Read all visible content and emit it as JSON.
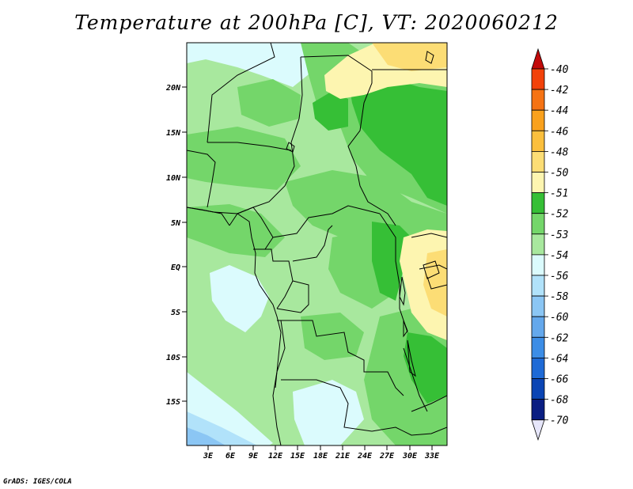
{
  "title": "Temperature at 200hPa [C], VT: 2020060212",
  "credit": "GrADS: IGES/COLA",
  "map": {
    "lat_labels": [
      "20N",
      "15N",
      "10N",
      "5N",
      "EQ",
      "5S",
      "10S",
      "15S"
    ],
    "lon_labels": [
      "3E",
      "6E",
      "9E",
      "12E",
      "15E",
      "18E",
      "21E",
      "24E",
      "27E",
      "30E",
      "33E"
    ]
  },
  "colorbar": {
    "levels": [
      {
        "label": "-40",
        "color": "#e8160b"
      },
      {
        "label": "-42",
        "color": "#f2420a"
      },
      {
        "label": "-44",
        "color": "#f57314"
      },
      {
        "label": "-46",
        "color": "#f9a11d"
      },
      {
        "label": "-48",
        "color": "#fbbf3d"
      },
      {
        "label": "-50",
        "color": "#fcdd75"
      },
      {
        "label": "-51",
        "color": "#fdf5b0"
      },
      {
        "label": "-52",
        "color": "#36bf36"
      },
      {
        "label": "-53",
        "color": "#74d66a"
      },
      {
        "label": "-54",
        "color": "#a8e89e"
      },
      {
        "label": "-56",
        "color": "#dbfbfd"
      },
      {
        "label": "-58",
        "color": "#b1e2fa"
      },
      {
        "label": "-60",
        "color": "#8bc6f4"
      },
      {
        "label": "-62",
        "color": "#64a8ec"
      },
      {
        "label": "-64",
        "color": "#3c8de6"
      },
      {
        "label": "-66",
        "color": "#1e6ad6"
      },
      {
        "label": "-68",
        "color": "#0b45b4"
      },
      {
        "label": "-70",
        "color": "#0a1e82"
      }
    ],
    "top_color": "#c20a0a",
    "bottom_color": "#e6e6fa"
  }
}
